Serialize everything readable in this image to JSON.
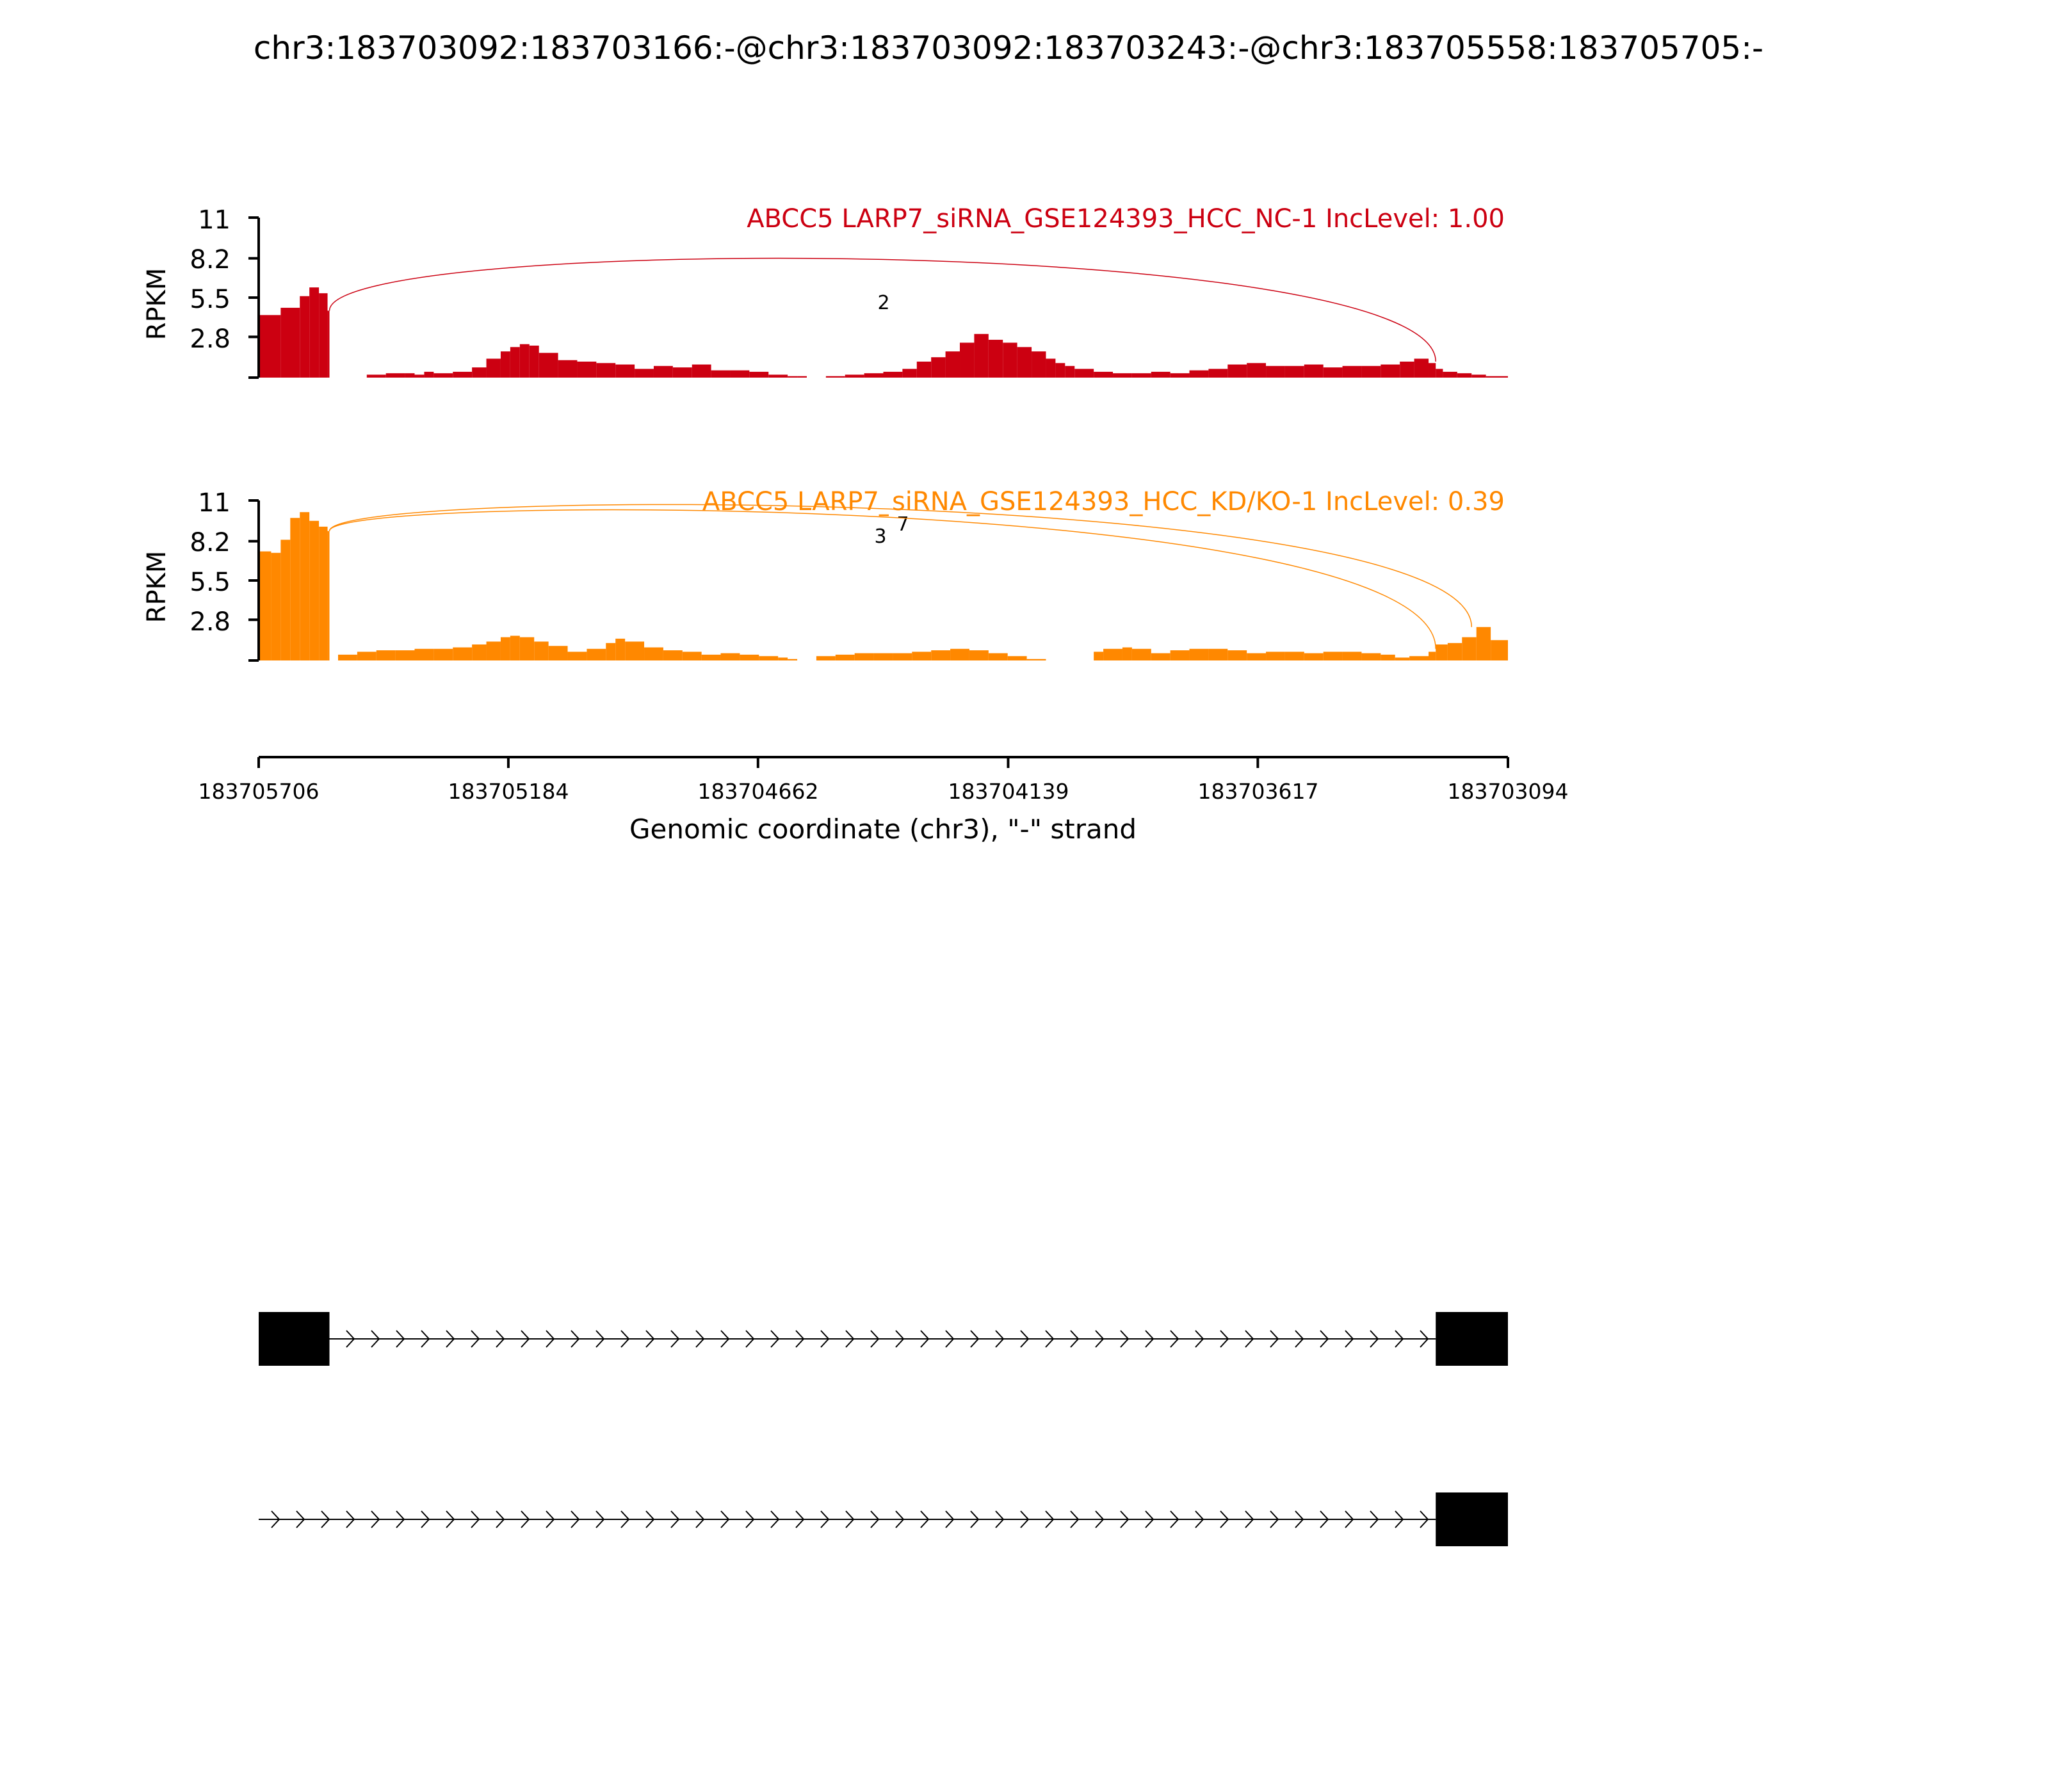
{
  "title": "chr3:183703092:183703166:-@chr3:183703092:183703243:-@chr3:183705558:183705705:-",
  "colors": {
    "nc": "#cc0011",
    "kd": "#ff8800",
    "axis": "#000000"
  },
  "chart_data": [
    {
      "type": "area",
      "title": "ABCC5 LARP7_siRNA_GSE124393_HCC_NC-1 IncLevel: 1.00",
      "ylabel": "RPKM",
      "ylim": [
        0,
        11
      ],
      "yticks": [
        "11",
        "8.2",
        "5.5",
        "2.8"
      ],
      "xlim": [
        183705706,
        183703094
      ],
      "x": [
        183705706,
        183705660,
        183705620,
        183705600,
        183705580,
        183705562,
        183705558,
        183705540,
        183705520,
        183705480,
        183705440,
        183705400,
        183705380,
        183705360,
        183705340,
        183705300,
        183705260,
        183705230,
        183705200,
        183705180,
        183705160,
        183705140,
        183705120,
        183705080,
        183705040,
        183705000,
        183704960,
        183704920,
        183704880,
        183704840,
        183704800,
        183704760,
        183704720,
        183704680,
        183704640,
        183704600,
        183704580,
        183704560,
        183704520,
        183704480,
        183704440,
        183704400,
        183704360,
        183704330,
        183704300,
        183704270,
        183704240,
        183704210,
        183704180,
        183704150,
        183704120,
        183704090,
        183704060,
        183704040,
        183704020,
        183704000,
        183703960,
        183703920,
        183703880,
        183703840,
        183703800,
        183703760,
        183703720,
        183703680,
        183703640,
        183703600,
        183703560,
        183703520,
        183703480,
        183703440,
        183703400,
        183703360,
        183703320,
        183703290,
        183703260,
        183703245,
        183703230,
        183703200,
        183703170,
        183703140,
        183703094
      ],
      "y": [
        4.3,
        4.8,
        5.6,
        6.2,
        5.8,
        4.6,
        0,
        0,
        0,
        0.2,
        0.3,
        0.3,
        0.2,
        0.4,
        0.3,
        0.4,
        0.7,
        1.3,
        1.8,
        2.1,
        2.3,
        2.2,
        1.7,
        1.2,
        1.1,
        1.0,
        0.9,
        0.6,
        0.8,
        0.7,
        0.9,
        0.5,
        0.5,
        0.4,
        0.2,
        0.1,
        0.1,
        0,
        0.1,
        0.2,
        0.3,
        0.4,
        0.6,
        1.1,
        1.4,
        1.8,
        2.4,
        3.0,
        2.6,
        2.4,
        2.1,
        1.8,
        1.3,
        1.0,
        0.8,
        0.6,
        0.4,
        0.3,
        0.3,
        0.4,
        0.3,
        0.5,
        0.6,
        0.9,
        1.0,
        0.8,
        0.8,
        0.9,
        0.7,
        0.8,
        0.8,
        0.9,
        1.1,
        1.3,
        1.0,
        0.6,
        0.4,
        0.3,
        0.2,
        0.1,
        0.1
      ],
      "junctions": [
        {
          "from": 183705558,
          "to": 183703245,
          "count": "2"
        }
      ]
    },
    {
      "type": "area",
      "title": "ABCC5 LARP7_siRNA_GSE124393_HCC_KD/KO-1 IncLevel: 0.39",
      "ylabel": "RPKM",
      "ylim": [
        0,
        11
      ],
      "yticks": [
        "11",
        "8.2",
        "5.5",
        "2.8"
      ],
      "xlim": [
        183705706,
        183703094
      ],
      "x": [
        183705706,
        183705680,
        183705660,
        183705640,
        183705620,
        183705600,
        183705580,
        183705562,
        183705558,
        183705540,
        183705500,
        183705460,
        183705420,
        183705380,
        183705340,
        183705300,
        183705260,
        183705230,
        183705200,
        183705180,
        183705160,
        183705130,
        183705100,
        183705060,
        183705020,
        183704980,
        183704960,
        183704940,
        183704900,
        183704860,
        183704820,
        183704780,
        183704740,
        183704700,
        183704660,
        183704620,
        183704600,
        183704580,
        183704540,
        183704500,
        183704460,
        183704420,
        183704380,
        183704340,
        183704300,
        183704260,
        183704220,
        183704180,
        183704140,
        183704100,
        183704060,
        183704020,
        183703980,
        183703960,
        183703940,
        183703900,
        183703880,
        183703840,
        183703800,
        183703760,
        183703720,
        183703680,
        183703640,
        183703600,
        183703560,
        183703520,
        183703480,
        183703440,
        183703400,
        183703360,
        183703330,
        183703300,
        183703260,
        183703245,
        183703220,
        183703190,
        183703160,
        183703130,
        183703094
      ],
      "y": [
        7.5,
        7.4,
        8.3,
        9.8,
        10.2,
        9.6,
        9.2,
        8.9,
        0,
        0.4,
        0.6,
        0.7,
        0.7,
        0.8,
        0.8,
        0.9,
        1.1,
        1.3,
        1.6,
        1.7,
        1.6,
        1.3,
        1.0,
        0.6,
        0.8,
        1.2,
        1.5,
        1.3,
        0.9,
        0.7,
        0.6,
        0.4,
        0.5,
        0.4,
        0.3,
        0.2,
        0.1,
        0,
        0.3,
        0.4,
        0.5,
        0.5,
        0.5,
        0.6,
        0.7,
        0.8,
        0.7,
        0.5,
        0.3,
        0.1,
        0,
        0,
        0,
        0.6,
        0.8,
        0.9,
        0.8,
        0.5,
        0.7,
        0.8,
        0.8,
        0.7,
        0.5,
        0.6,
        0.6,
        0.5,
        0.6,
        0.6,
        0.5,
        0.4,
        0.2,
        0.3,
        0.6,
        1.1,
        1.2,
        1.6,
        2.3,
        1.4,
        0.8
      ],
      "junctions": [
        {
          "from": 183705558,
          "to": 183703170,
          "count": "7"
        },
        {
          "from": 183705558,
          "to": 183703245,
          "count": "3"
        }
      ]
    }
  ],
  "x_axis": {
    "label": "Genomic coordinate (chr3), \"-\" strand",
    "ticks": [
      "183705706",
      "183705184",
      "183704662",
      "183704139",
      "183703617",
      "183703094"
    ],
    "tick_values": [
      183705706,
      183705184,
      183704662,
      183704139,
      183703617,
      183703094
    ]
  },
  "transcripts": [
    {
      "exons": [
        [
          183705706,
          183705558
        ],
        [
          183703245,
          183703094
        ]
      ]
    },
    {
      "exons": [
        [
          183703245,
          183703094
        ]
      ],
      "line_from": 183705706
    }
  ]
}
